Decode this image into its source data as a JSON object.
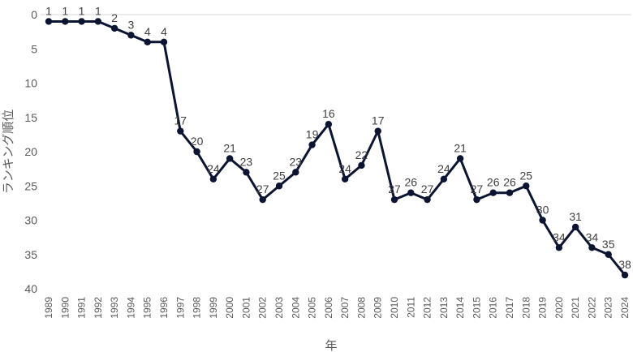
{
  "chart_data": {
    "type": "line",
    "title": "",
    "xlabel": "年",
    "ylabel": "ランキング順位",
    "y_inverted": true,
    "ylim": [
      0,
      40
    ],
    "yticks": [
      0,
      5,
      10,
      15,
      20,
      25,
      30,
      35,
      40
    ],
    "grid": "top baseline only",
    "legend": "none",
    "colors": {
      "line": "#0b1430",
      "gridline": "#d9d9d9",
      "tick_text": "#595959"
    },
    "categories": [
      "1989",
      "1990",
      "1991",
      "1992",
      "1993",
      "1994",
      "1995",
      "1996",
      "1997",
      "1998",
      "1999",
      "2000",
      "2001",
      "2002",
      "2003",
      "2004",
      "2005",
      "2006",
      "2007",
      "2008",
      "2009",
      "2010",
      "2011",
      "2012",
      "2013",
      "2014",
      "2015",
      "2016",
      "2017",
      "2018",
      "2019",
      "2020",
      "2021",
      "2022",
      "2023",
      "2024"
    ],
    "values": [
      1,
      1,
      1,
      1,
      2,
      3,
      4,
      4,
      17,
      20,
      24,
      21,
      23,
      27,
      25,
      23,
      19,
      16,
      24,
      22,
      17,
      27,
      26,
      27,
      24,
      21,
      27,
      26,
      26,
      25,
      30,
      34,
      31,
      34,
      35,
      38
    ]
  }
}
